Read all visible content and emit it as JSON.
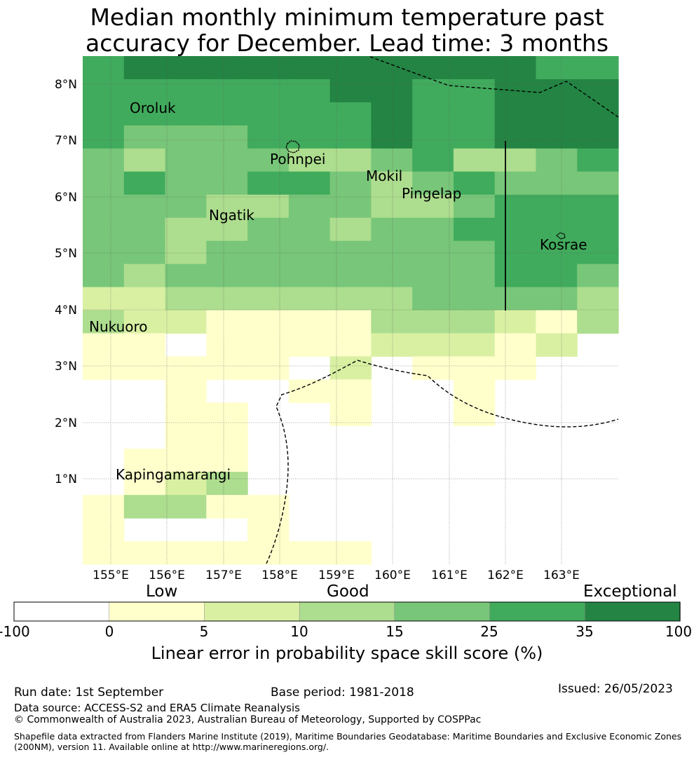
{
  "title": {
    "line1": "Median monthly minimum temperature past",
    "line2": "accuracy for December. Lead time: 3 months"
  },
  "map": {
    "lon_ticks": [
      "155°E",
      "156°E",
      "157°E",
      "158°E",
      "159°E",
      "160°E",
      "161°E",
      "162°E",
      "163°E"
    ],
    "lat_ticks": [
      "8°N",
      "7°N",
      "6°N",
      "5°N",
      "4°N",
      "3°N",
      "2°N",
      "1°N"
    ],
    "places": [
      "Oroluk",
      "Pohnpei",
      "Mokil",
      "Pingelap",
      "Ngatik",
      "Kosrae",
      "Nukuoro",
      "Kapingamarangi"
    ],
    "colors": [
      "#ffffff",
      "#ffffcc",
      "#d9f0a3",
      "#addd8e",
      "#78c679",
      "#41ab5d",
      "#238443"
    ],
    "grid_rows": [
      "5666666666655",
      "5555556655666",
      "5555555655666",
      "5444555655666",
      "4344433453345",
      "4544554345444",
      "4443344334555",
      "4433443445555",
      "4434444444555",
      "4344444444554",
      "2233333344443",
      "3221111333213",
      "1101111222120",
      "1111102011100",
      "0010011001000",
      "0011001001000",
      "0011000000000",
      "0111000000000",
      "0123000000000",
      "1331100000000",
      "1000100000000",
      "1111111000000"
    ]
  },
  "colorbar": {
    "categories": [
      "Low",
      "Good",
      "Exceptional"
    ],
    "ticks": [
      "-100",
      "0",
      "5",
      "10",
      "15",
      "25",
      "35",
      "100"
    ],
    "label": "Linear error in probability space skill score (%)"
  },
  "footer": {
    "run_date": "Run date: 1st September",
    "base_period": "Base period: 1981-2018",
    "issued": "Issued: 26/05/2023",
    "data_source": "Data source: ACCESS-S2 and ERA5 Climate Reanalysis",
    "copyright": "© Commonwealth of Australia 2023, Australian Bureau of Meteorology, Supported by COSPPac",
    "shapefile_line1": "Shapefile data extracted from Flanders Marine Institute (2019), Maritime Boundaries Geodatabase: Maritime Boundaries and Exclusive Economic Zones",
    "shapefile_line2": "(200NM), version 11. Available online at http://www.marineregions.org/."
  }
}
